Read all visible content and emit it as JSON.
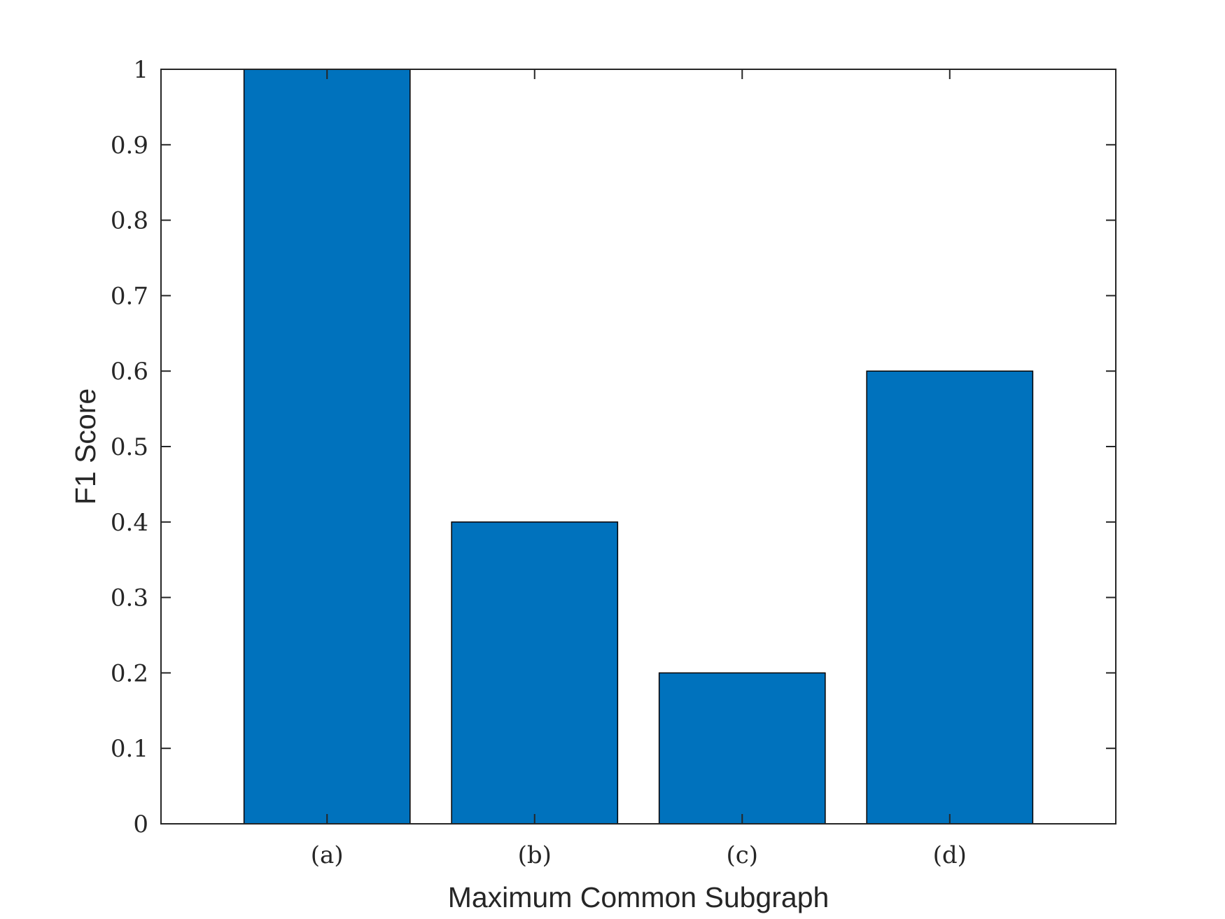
{
  "chart_data": {
    "type": "bar",
    "categories": [
      "(a)",
      "(b)",
      "(c)",
      "(d)"
    ],
    "values": [
      1.0,
      0.4,
      0.2,
      0.6
    ],
    "xlabel": "Maximum Common Subgraph",
    "ylabel": "F1 Score",
    "ylim": [
      0,
      1
    ],
    "xlim": [
      0.2,
      4.8
    ],
    "yticks": [
      0,
      0.1,
      0.2,
      0.3,
      0.4,
      0.5,
      0.6,
      0.7,
      0.8,
      0.9,
      1
    ],
    "ytick_labels": [
      "0",
      "0.1",
      "0.2",
      "0.3",
      "0.4",
      "0.5",
      "0.6",
      "0.7",
      "0.8",
      "0.9",
      "1"
    ],
    "grid": false,
    "bar_color": "#0072BD",
    "axis_color": "#262626"
  }
}
